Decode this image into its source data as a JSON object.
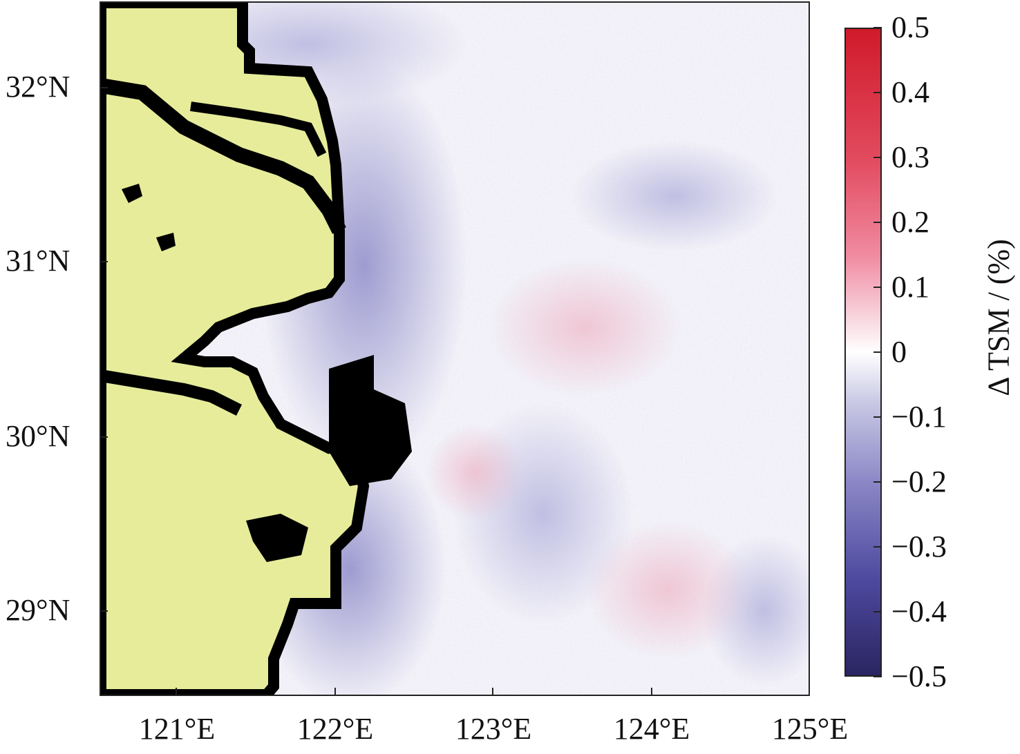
{
  "map": {
    "lat_labels": [
      "32°N",
      "31°N",
      "30°N",
      "29°N"
    ],
    "lon_labels": [
      "121°E",
      "122°E",
      "123°E",
      "124°E",
      "125°E"
    ],
    "land_color": "#e6ec9a",
    "coast_color": "#000000"
  },
  "colorbar": {
    "title": "Δ TSM / (%)",
    "ticks": [
      "0.5",
      "0.4",
      "0.3",
      "0.2",
      "0.1",
      "0",
      "−0.1",
      "−0.2",
      "−0.3",
      "−0.4",
      "−0.5"
    ],
    "range": [
      -0.5,
      0.5
    ],
    "colors": {
      "min": "#2a2560",
      "mid": "#ffffff",
      "max": "#d01a2a"
    }
  }
}
